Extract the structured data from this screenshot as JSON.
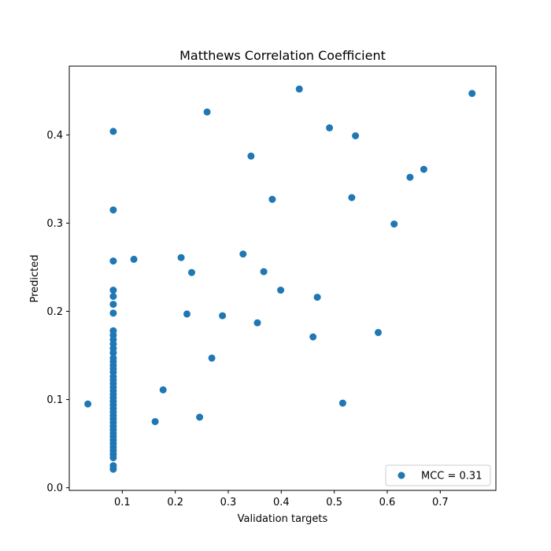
{
  "chart_data": {
    "type": "scatter",
    "title": "Matthews Correlation Coefficient",
    "xlabel": "Validation targets",
    "ylabel": "Predicted",
    "xlim": [
      0.0,
      0.805
    ],
    "ylim": [
      -0.003,
      0.478
    ],
    "xticks": [
      0.1,
      0.2,
      0.3,
      0.4,
      0.5,
      0.6,
      0.7
    ],
    "xtick_labels": [
      "0.1",
      "0.2",
      "0.3",
      "0.4",
      "0.5",
      "0.6",
      "0.7"
    ],
    "yticks": [
      0.0,
      0.1,
      0.2,
      0.3,
      0.4
    ],
    "ytick_labels": [
      "0.0",
      "0.1",
      "0.2",
      "0.3",
      "0.4"
    ],
    "grid": false,
    "legend": {
      "position": "lower-right",
      "entries": [
        "MCC = 0.31"
      ]
    },
    "series": [
      {
        "name": "MCC = 0.31",
        "color": "#1f77b4",
        "points": [
          [
            0.035,
            0.095
          ],
          [
            0.083,
            0.404
          ],
          [
            0.083,
            0.315
          ],
          [
            0.083,
            0.257
          ],
          [
            0.083,
            0.224
          ],
          [
            0.083,
            0.217
          ],
          [
            0.083,
            0.208
          ],
          [
            0.083,
            0.198
          ],
          [
            0.083,
            0.178
          ],
          [
            0.083,
            0.173
          ],
          [
            0.083,
            0.168
          ],
          [
            0.083,
            0.163
          ],
          [
            0.083,
            0.158
          ],
          [
            0.083,
            0.153
          ],
          [
            0.083,
            0.147
          ],
          [
            0.083,
            0.143
          ],
          [
            0.083,
            0.139
          ],
          [
            0.083,
            0.135
          ],
          [
            0.083,
            0.131
          ],
          [
            0.083,
            0.126
          ],
          [
            0.083,
            0.122
          ],
          [
            0.083,
            0.118
          ],
          [
            0.083,
            0.114
          ],
          [
            0.083,
            0.11
          ],
          [
            0.083,
            0.106
          ],
          [
            0.083,
            0.102
          ],
          [
            0.083,
            0.098
          ],
          [
            0.083,
            0.094
          ],
          [
            0.083,
            0.09
          ],
          [
            0.083,
            0.086
          ],
          [
            0.083,
            0.082
          ],
          [
            0.083,
            0.078
          ],
          [
            0.083,
            0.074
          ],
          [
            0.083,
            0.07
          ],
          [
            0.083,
            0.066
          ],
          [
            0.083,
            0.062
          ],
          [
            0.083,
            0.058
          ],
          [
            0.083,
            0.054
          ],
          [
            0.083,
            0.05
          ],
          [
            0.083,
            0.046
          ],
          [
            0.083,
            0.042
          ],
          [
            0.083,
            0.038
          ],
          [
            0.083,
            0.034
          ],
          [
            0.083,
            0.025
          ],
          [
            0.083,
            0.021
          ],
          [
            0.122,
            0.259
          ],
          [
            0.162,
            0.075
          ],
          [
            0.177,
            0.111
          ],
          [
            0.211,
            0.261
          ],
          [
            0.222,
            0.197
          ],
          [
            0.231,
            0.244
          ],
          [
            0.246,
            0.08
          ],
          [
            0.26,
            0.426
          ],
          [
            0.269,
            0.147
          ],
          [
            0.289,
            0.195
          ],
          [
            0.328,
            0.265
          ],
          [
            0.343,
            0.376
          ],
          [
            0.355,
            0.187
          ],
          [
            0.367,
            0.245
          ],
          [
            0.383,
            0.327
          ],
          [
            0.399,
            0.224
          ],
          [
            0.434,
            0.452
          ],
          [
            0.46,
            0.171
          ],
          [
            0.468,
            0.216
          ],
          [
            0.491,
            0.408
          ],
          [
            0.516,
            0.096
          ],
          [
            0.533,
            0.329
          ],
          [
            0.54,
            0.399
          ],
          [
            0.583,
            0.176
          ],
          [
            0.613,
            0.299
          ],
          [
            0.643,
            0.352
          ],
          [
            0.669,
            0.361
          ],
          [
            0.76,
            0.447
          ]
        ]
      }
    ]
  }
}
